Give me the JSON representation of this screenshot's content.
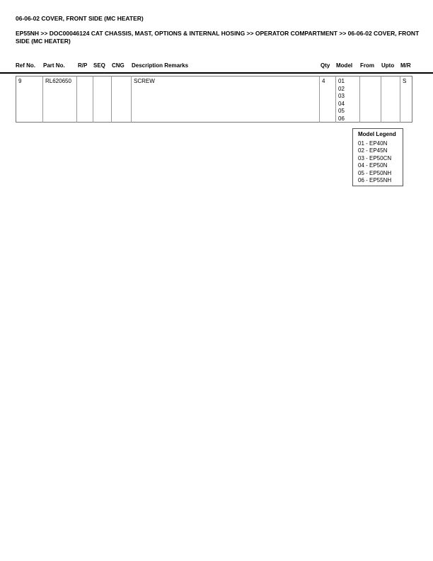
{
  "title": "06-06-02 COVER, FRONT SIDE (MC HEATER)",
  "breadcrumb": "EP55NH >> DOC00046124 CAT CHASSIS, MAST, OPTIONS & INTERNAL HOSING >> OPERATOR COMPARTMENT >> 06-06-02 COVER, FRONT SIDE (MC HEATER)",
  "headers": {
    "ref": "Ref No.",
    "part": "Part No.",
    "rp": "R/P",
    "seq": "SEQ",
    "cng": "CNG",
    "desc": "Description Remarks",
    "qty": "Qty",
    "model": "Model",
    "from": "From",
    "upto": "Upto",
    "mr": "M/R"
  },
  "rows": [
    {
      "ref": "9",
      "part": "RL620650",
      "rp": "",
      "seq": "",
      "cng": "",
      "desc": "SCREW",
      "qty": "4",
      "models": [
        "01",
        "02",
        "03",
        "04",
        "05",
        "06"
      ],
      "from": "",
      "upto": "",
      "mr": "S"
    }
  ],
  "legend": {
    "title": "Model Legend",
    "items": [
      "01 - EP40N",
      "02 - EP45N",
      "03 - EP50CN",
      "04 - EP50N",
      "05 - EP50NH",
      "06 - EP55NH"
    ]
  }
}
